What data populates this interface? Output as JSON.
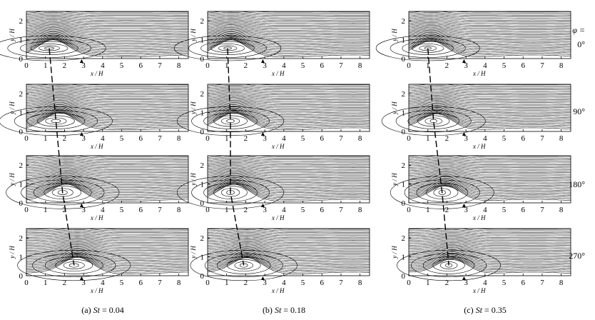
{
  "figure": {
    "columns": [
      {
        "caption_prefix": "(a) ",
        "caption_var": "St",
        "caption_value": " = 0.04"
      },
      {
        "caption_prefix": "(b) ",
        "caption_var": "St",
        "caption_value": " = 0.18"
      },
      {
        "caption_prefix": "(c) ",
        "caption_var": "St",
        "caption_value": " = 0.35"
      }
    ],
    "rows": [
      {
        "phase_label": "0°"
      },
      {
        "phase_label": "90°"
      },
      {
        "phase_label": "180°"
      },
      {
        "phase_label": "270°"
      }
    ],
    "phase_symbol": "φ =",
    "x_axis_label": "x / H",
    "y_axis_label": "y / H",
    "x_ticks": [
      "0",
      "1",
      "2",
      "3",
      "4",
      "5",
      "6",
      "7",
      "8"
    ],
    "y_ticks": [
      "0",
      "1",
      "2"
    ],
    "vortex_centers_xH": [
      [
        1.2,
        1.55,
        1.9,
        2.5
      ],
      [
        1.05,
        1.2,
        1.2,
        1.9
      ],
      [
        1.0,
        1.3,
        1.75,
        2.1
      ]
    ],
    "marker_xH": 2.9,
    "colors": {
      "line": "#000000",
      "background": "#ffffff"
    }
  }
}
